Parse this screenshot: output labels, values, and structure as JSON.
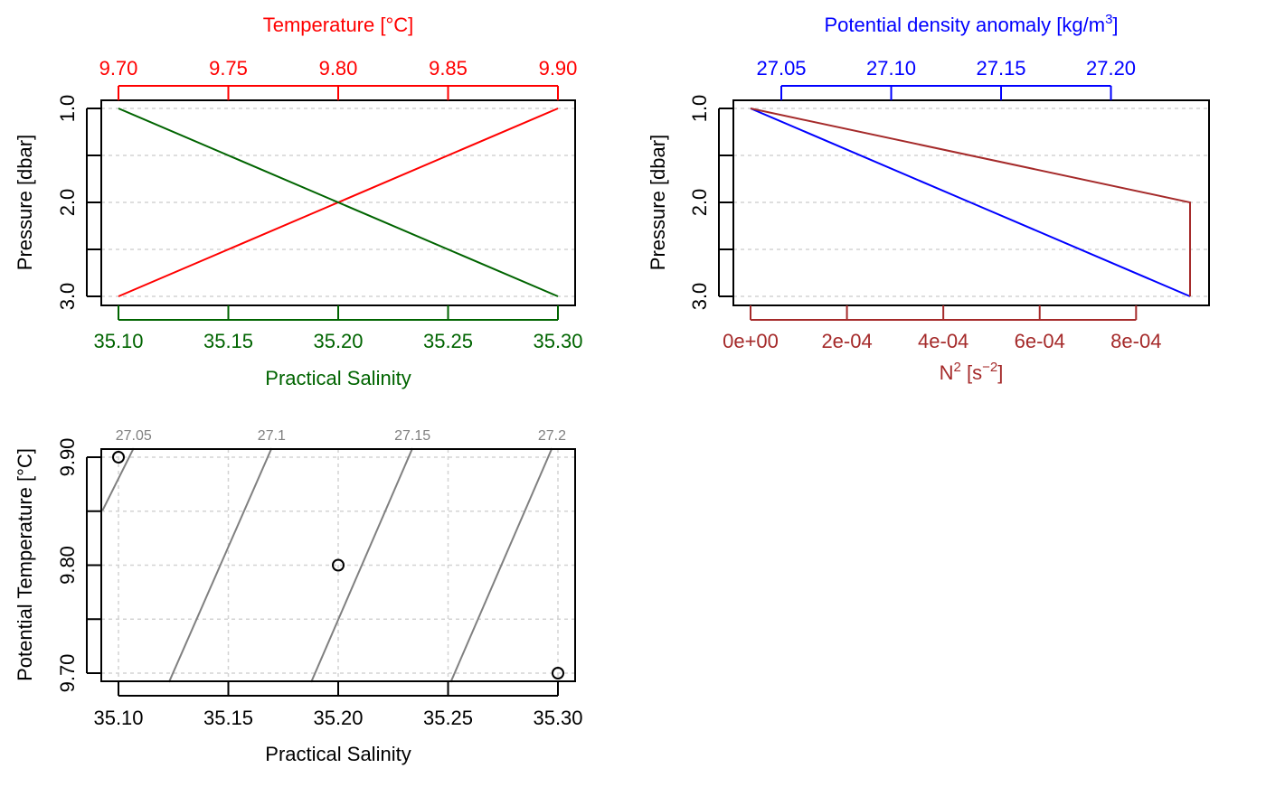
{
  "colors": {
    "red": "#ff0000",
    "green": "#006400",
    "blue": "#0000ff",
    "brown": "#a52a2a",
    "grid": "#d3d3d3",
    "isopycnal": "#808080",
    "black": "#000000"
  },
  "chart_data": [
    {
      "id": "profile_TS",
      "type": "line",
      "y_axis": {
        "label": "Pressure [dbar]",
        "range": [
          1.0,
          3.0
        ],
        "reversed": true,
        "ticks": [
          "1.0",
          "2.0",
          "3.0"
        ],
        "grid": [
          1.0,
          1.5,
          2.0,
          2.5,
          3.0
        ]
      },
      "top_axis": {
        "label": "Temperature [°C]",
        "range": [
          9.7,
          9.9
        ],
        "ticks": [
          "9.70",
          "9.75",
          "9.80",
          "9.85",
          "9.90"
        ],
        "color": "red"
      },
      "bottom_axis": {
        "label": "Practical Salinity",
        "range": [
          35.1,
          35.3
        ],
        "ticks": [
          "35.10",
          "35.15",
          "35.20",
          "35.25",
          "35.30"
        ],
        "color": "green"
      },
      "series": [
        {
          "name": "Temperature",
          "axis": "top",
          "color": "red",
          "points": [
            [
              9.9,
              1.0
            ],
            [
              9.8,
              2.0
            ],
            [
              9.7,
              3.0
            ]
          ]
        },
        {
          "name": "Practical Salinity",
          "axis": "bottom",
          "color": "green",
          "points": [
            [
              35.1,
              1.0
            ],
            [
              35.2,
              2.0
            ],
            [
              35.3,
              3.0
            ]
          ]
        }
      ]
    },
    {
      "id": "profile_density_N2",
      "type": "line",
      "y_axis": {
        "label": "Pressure [dbar]",
        "range": [
          1.0,
          3.0
        ],
        "reversed": true,
        "ticks": [
          "1.0",
          "2.0",
          "3.0"
        ],
        "grid": [
          1.0,
          1.5,
          2.0,
          2.5,
          3.0
        ]
      },
      "top_axis": {
        "label": "Potential density anomaly [kg/m",
        "label_sup": "3",
        "label_end": "]",
        "range": [
          27.036,
          27.236
        ],
        "ticks": [
          "27.05",
          "27.10",
          "27.15",
          "27.20"
        ],
        "color": "blue"
      },
      "bottom_axis": {
        "label": "N",
        "label_sup": "2",
        "label_mid": " [s",
        "label_sup2": "−2",
        "label_end": "]",
        "range": [
          0,
          0.000912
        ],
        "ticks": [
          "0e+00",
          "2e-04",
          "4e-04",
          "6e-04",
          "8e-04"
        ],
        "tick_values": [
          0,
          0.0002,
          0.0004,
          0.0006,
          0.0008
        ],
        "color": "brown"
      },
      "series": [
        {
          "name": "Potential density anomaly",
          "axis": "top",
          "color": "blue",
          "points": [
            [
              27.036,
              1.0
            ],
            [
              27.136,
              2.0
            ],
            [
              27.236,
              3.0
            ]
          ]
        },
        {
          "name": "N2",
          "axis": "bottom",
          "color": "brown",
          "points": [
            [
              0,
              1.0
            ],
            [
              0.000912,
              2.0
            ],
            [
              0.000912,
              3.0
            ]
          ]
        }
      ]
    },
    {
      "id": "TS_diagram",
      "type": "scatter",
      "x_axis": {
        "label": "Practical Salinity",
        "range": [
          35.1,
          35.3
        ],
        "ticks": [
          "35.10",
          "35.15",
          "35.20",
          "35.25",
          "35.30"
        ]
      },
      "y_axis": {
        "label": "Potential Temperature [°C]",
        "range": [
          9.7,
          9.9
        ],
        "ticks": [
          "9.70",
          "9.80",
          "9.90"
        ],
        "grid": [
          9.7,
          9.75,
          9.8,
          9.85,
          9.9
        ]
      },
      "points": [
        [
          35.1,
          9.9
        ],
        [
          35.2,
          9.8
        ],
        [
          35.3,
          9.7
        ]
      ],
      "isopycnals": [
        {
          "label": "27.05",
          "points": [
            [
              35.0927,
              9.8505
            ],
            [
              35.1069,
              9.9083
            ]
          ]
        },
        {
          "label": "27.1",
          "points": [
            [
              35.123,
              9.6917
            ],
            [
              35.1697,
              9.9083
            ]
          ]
        },
        {
          "label": "27.15",
          "points": [
            [
              35.1877,
              9.6917
            ],
            [
              35.2338,
              9.9083
            ]
          ]
        },
        {
          "label": "27.2",
          "points": [
            [
              35.2512,
              9.6917
            ],
            [
              35.2973,
              9.9083
            ]
          ]
        }
      ]
    }
  ]
}
